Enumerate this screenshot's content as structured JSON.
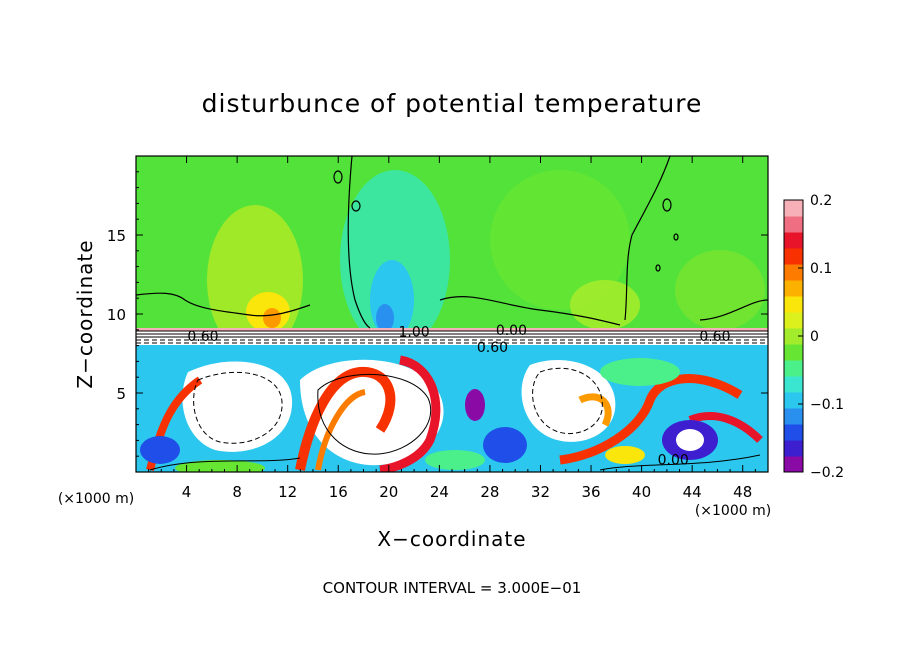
{
  "chart_data": {
    "type": "heatmap",
    "title": "disturbunce of potential temperature",
    "xlabel": "X−coordinate",
    "ylabel": "Z−coordinate",
    "x_unit_left": "(×1000 m)",
    "x_unit_right": "(×1000 m)",
    "footer": "CONTOUR INTERVAL = 3.000E−01",
    "xlim": [
      0,
      50
    ],
    "ylim": [
      0,
      20
    ],
    "x_ticks": [
      4,
      8,
      12,
      16,
      20,
      24,
      28,
      32,
      36,
      40,
      44,
      48
    ],
    "x_tick_labels": [
      "4",
      "8",
      "12",
      "16",
      "20",
      "24",
      "28",
      "32",
      "36",
      "40",
      "44",
      "48"
    ],
    "y_ticks": [
      5,
      10,
      15
    ],
    "y_tick_labels": [
      "5",
      "10",
      "15"
    ],
    "colorbar": {
      "range": [
        -0.2,
        0.2
      ],
      "tick_values": [
        0.2,
        0.1,
        0,
        -0.1,
        -0.2
      ],
      "tick_labels": [
        "0.2",
        "0.1",
        "0",
        "−0.1",
        "−0.2"
      ],
      "colors": [
        "#8a0aa6",
        "#3d1fd0",
        "#1f4fe8",
        "#2a90f0",
        "#2bc7ee",
        "#3ae6d0",
        "#4cf08a",
        "#66e632",
        "#a3ec2c",
        "#dcf01e",
        "#fbe60b",
        "#fcb100",
        "#fd7c00",
        "#f83100",
        "#e8152a",
        "#f06e82",
        "#f7b0b8"
      ]
    },
    "contour_labels": [
      {
        "text": "0.60",
        "x": 5.3,
        "z": 8.6
      },
      {
        "text": "1.00",
        "x": 22.0,
        "z": 8.9
      },
      {
        "text": "0.00",
        "x": 29.7,
        "z": 9.0
      },
      {
        "text": "0.60",
        "x": 28.2,
        "z": 7.9
      },
      {
        "text": "0.60",
        "x": 45.8,
        "z": 8.6
      },
      {
        "text": "0.00",
        "x": 42.5,
        "z": 0.8
      }
    ]
  }
}
